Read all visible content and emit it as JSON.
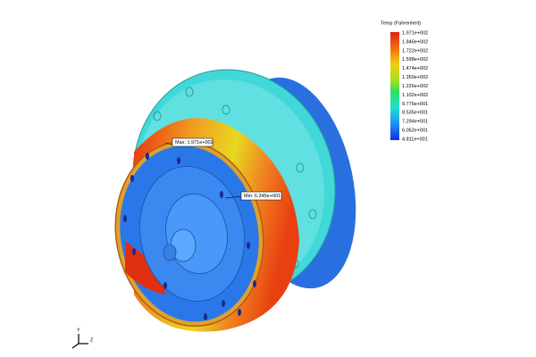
{
  "legend": {
    "title": "Temp (Fahrenheit)",
    "labels": [
      "1.971e+002",
      "1.846e+002",
      "1.722e+002",
      "1.598e+002",
      "1.474e+002",
      "1.350e+002",
      "1.226e+002",
      "1.102e+002",
      "9.776e+001",
      "8.535e+001",
      "7.294e+001",
      "6.052e+001",
      "4.811e+001"
    ]
  },
  "annotations": {
    "max": "Max: 1.971e+002",
    "min": "Min: 6.345e+001"
  },
  "triad": {
    "y": "Y",
    "z": "Z"
  }
}
